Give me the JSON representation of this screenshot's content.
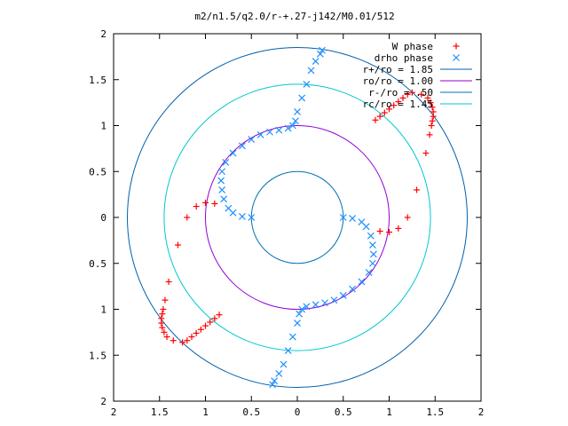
{
  "chart_data": {
    "type": "scatter",
    "title": "m2/n1.5/q2.0/r-+.27-j142/M0.01/512",
    "xlim": [
      -2,
      2
    ],
    "ylim": [
      -2,
      2
    ],
    "x_ticks": [
      "2",
      "1.5",
      "1",
      "0.5",
      "0",
      "0.5",
      "1",
      "1.5",
      "2"
    ],
    "y_ticks": [
      "2",
      "1.5",
      "1",
      "0.5",
      "0",
      "0.5",
      "1",
      "1.5",
      "2"
    ],
    "x_tick_values": [
      -2,
      -1.5,
      -1,
      -0.5,
      0,
      0.5,
      1,
      1.5,
      2
    ],
    "y_tick_values": [
      2,
      1.5,
      1,
      0.5,
      0,
      -0.5,
      -1,
      -1.5,
      -2
    ],
    "grid": false,
    "legend_position": "top-right",
    "legend": [
      {
        "label": "W phase",
        "kind": "plus",
        "color": "#ff0000"
      },
      {
        "label": "drho phase",
        "kind": "cross",
        "color": "#1e90ff"
      },
      {
        "label": "r+/ro = 1.85",
        "kind": "line",
        "color": "#0060ad"
      },
      {
        "label": "ro/ro = 1.00",
        "kind": "line",
        "color": "#9400d3"
      },
      {
        "label": "r-/ro = .50",
        "kind": "line",
        "color": "#0072b2"
      },
      {
        "label": "rc/ro = 1.45",
        "kind": "line",
        "color": "#00c8d0"
      }
    ],
    "circles": [
      {
        "name": "r+/ro",
        "radius": 1.85,
        "color": "#0060ad"
      },
      {
        "name": "ro/ro",
        "radius": 1.0,
        "color": "#9400d3"
      },
      {
        "name": "r-/ro",
        "radius": 0.5,
        "color": "#0072b2"
      },
      {
        "name": "rc/ro",
        "radius": 1.45,
        "color": "#00c8d0"
      }
    ],
    "series": [
      {
        "name": "W phase",
        "marker": "plus",
        "color": "#ff0000",
        "x": [
          0.9,
          1.0,
          1.1,
          1.2,
          1.3,
          1.4,
          1.44,
          1.46,
          1.47,
          1.48,
          1.48,
          1.47,
          1.45,
          1.42,
          1.35,
          1.25,
          1.2,
          1.15,
          1.1,
          1.05,
          1.0,
          0.95,
          0.9,
          0.85,
          -0.9,
          -1.0,
          -1.1,
          -1.2,
          -1.3,
          -1.4,
          -1.44,
          -1.46,
          -1.47,
          -1.48,
          -1.48,
          -1.47,
          -1.45,
          -1.42,
          -1.35,
          -1.25,
          -1.2,
          -1.15,
          -1.1,
          -1.05,
          -1.0,
          -0.95,
          -0.9,
          -0.85
        ],
        "y": [
          -0.15,
          -0.16,
          -0.12,
          0.0,
          0.3,
          0.7,
          0.9,
          1.0,
          1.05,
          1.1,
          1.15,
          1.2,
          1.25,
          1.3,
          1.34,
          1.36,
          1.34,
          1.3,
          1.26,
          1.22,
          1.18,
          1.14,
          1.1,
          1.06,
          0.15,
          0.16,
          0.12,
          0.0,
          -0.3,
          -0.7,
          -0.9,
          -1.0,
          -1.05,
          -1.1,
          -1.15,
          -1.2,
          -1.25,
          -1.3,
          -1.34,
          -1.36,
          -1.34,
          -1.3,
          -1.26,
          -1.22,
          -1.18,
          -1.14,
          -1.1,
          -1.06
        ]
      },
      {
        "name": "drho phase",
        "marker": "cross",
        "color": "#1e90ff",
        "x": [
          0.5,
          0.6,
          0.7,
          0.75,
          0.8,
          0.82,
          0.83,
          0.82,
          0.78,
          0.7,
          0.6,
          0.5,
          0.4,
          0.3,
          0.2,
          0.1,
          0.05,
          0.02,
          0.0,
          -0.05,
          -0.1,
          -0.15,
          -0.2,
          -0.25,
          -0.27,
          -0.5,
          -0.6,
          -0.7,
          -0.75,
          -0.8,
          -0.82,
          -0.83,
          -0.82,
          -0.78,
          -0.7,
          -0.6,
          -0.5,
          -0.4,
          -0.3,
          -0.2,
          -0.1,
          -0.05,
          -0.02,
          0.0,
          0.05,
          0.1,
          0.15,
          0.2,
          0.25,
          0.27
        ],
        "y": [
          0.0,
          -0.01,
          -0.05,
          -0.1,
          -0.2,
          -0.3,
          -0.4,
          -0.5,
          -0.6,
          -0.7,
          -0.78,
          -0.85,
          -0.9,
          -0.93,
          -0.95,
          -0.97,
          -1.0,
          -1.05,
          -1.15,
          -1.3,
          -1.45,
          -1.6,
          -1.7,
          -1.78,
          -1.82,
          0.0,
          0.01,
          0.05,
          0.1,
          0.2,
          0.3,
          0.4,
          0.5,
          0.6,
          0.7,
          0.78,
          0.85,
          0.9,
          0.93,
          0.95,
          0.97,
          1.0,
          1.05,
          1.15,
          1.3,
          1.45,
          1.6,
          1.7,
          1.78,
          1.82
        ]
      }
    ]
  }
}
